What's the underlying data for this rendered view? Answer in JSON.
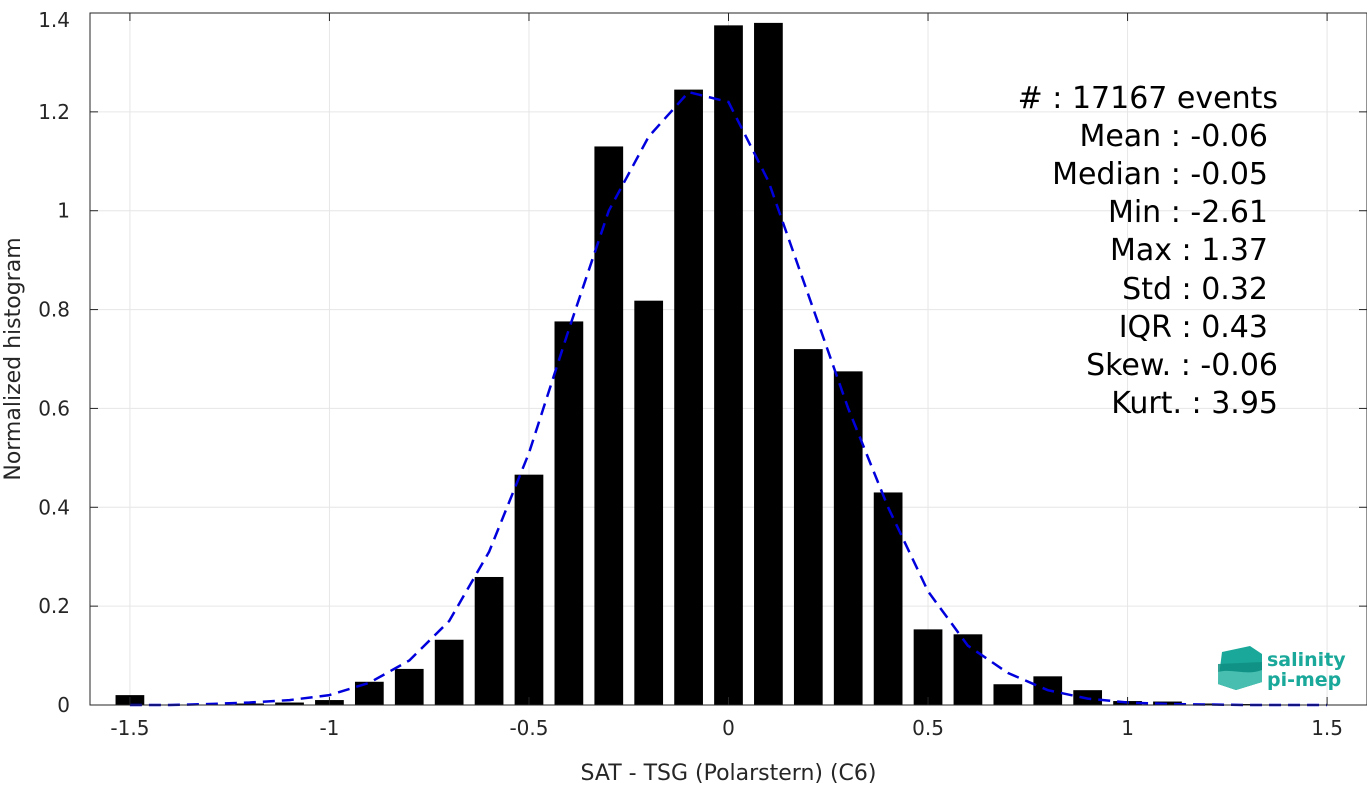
{
  "chart_data": {
    "type": "bar",
    "xlabel": "SAT - TSG (Polarstern) (C6)",
    "ylabel": "Normalized histogram",
    "xlim": [
      -1.6,
      1.6
    ],
    "ylim": [
      0,
      1.4
    ],
    "xticks": [
      -1.5,
      -1,
      -0.5,
      0,
      0.5,
      1,
      1.5
    ],
    "xtick_labels": [
      "-1.5",
      "-1",
      "-0.5",
      "0",
      "0.5",
      "1",
      "1.5"
    ],
    "yticks": [
      0,
      0.2,
      0.4,
      0.6,
      0.8,
      1,
      1.2,
      1.4
    ],
    "ytick_labels": [
      "0",
      "0.2",
      "0.4",
      "0.6",
      "0.8",
      "1",
      "1.2",
      "1.4"
    ],
    "grid": true,
    "bar_color": "#000000",
    "series": [
      {
        "type": "bar",
        "x": [
          -1.5,
          -1.4,
          -1.3,
          -1.2,
          -1.1,
          -1.0,
          -0.9,
          -0.8,
          -0.7,
          -0.6,
          -0.5,
          -0.4,
          -0.3,
          -0.2,
          -0.1,
          0.0,
          0.1,
          0.2,
          0.3,
          0.4,
          0.5,
          0.6,
          0.7,
          0.8,
          0.9,
          1.0,
          1.1,
          1.2,
          1.3,
          1.4,
          1.5
        ],
        "values": [
          0.02,
          0.0,
          0.0,
          0.003,
          0.005,
          0.01,
          0.047,
          0.073,
          0.132,
          0.259,
          0.466,
          0.776,
          1.13,
          0.818,
          1.245,
          1.375,
          1.38,
          0.72,
          0.675,
          0.43,
          0.153,
          0.143,
          0.042,
          0.058,
          0.03,
          0.008,
          0.007,
          0.003,
          0.002,
          0.001,
          0.0
        ]
      },
      {
        "type": "line",
        "style": "dashed",
        "color": "#0000dd",
        "x": [
          -1.5,
          -1.4,
          -1.3,
          -1.2,
          -1.1,
          -1.0,
          -0.9,
          -0.8,
          -0.7,
          -0.6,
          -0.5,
          -0.4,
          -0.3,
          -0.2,
          -0.1,
          0.0,
          0.1,
          0.2,
          0.3,
          0.4,
          0.5,
          0.6,
          0.7,
          0.8,
          0.9,
          1.0,
          1.1,
          1.2,
          1.3,
          1.4,
          1.5
        ],
        "values": [
          0.0,
          0.0,
          0.002,
          0.005,
          0.01,
          0.02,
          0.045,
          0.09,
          0.17,
          0.31,
          0.51,
          0.76,
          1.0,
          1.15,
          1.24,
          1.22,
          1.06,
          0.83,
          0.6,
          0.4,
          0.23,
          0.12,
          0.065,
          0.03,
          0.013,
          0.005,
          0.002,
          0.001,
          0.0,
          0.0,
          0.0
        ]
      }
    ],
    "annotation": {
      "lines": [
        "#  : 17167 events",
        "Mean : -0.06",
        "Median : -0.05",
        "Min : -2.61",
        "Max : 1.37",
        "Std : 0.32",
        "IQR : 0.43",
        "Skew. : -0.06",
        "Kurt. : 3.95"
      ]
    }
  },
  "logo": {
    "line1": "salinity",
    "line2": "pi-mep",
    "color": "#1aa89a"
  }
}
